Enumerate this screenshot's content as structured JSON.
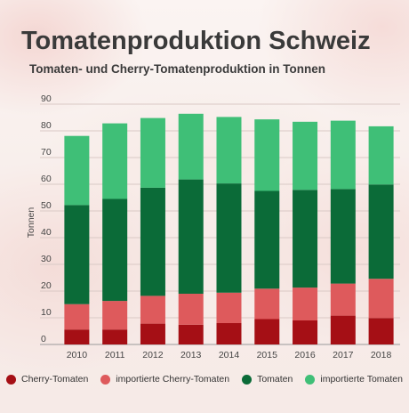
{
  "title": "Tomatenproduktion Schweiz",
  "subtitle": "Tomaten- und Cherry-Tomatenproduktion in Tonnen",
  "chart_data": {
    "type": "bar",
    "stacked": true,
    "categories": [
      "2010",
      "2011",
      "2012",
      "2013",
      "2014",
      "2015",
      "2016",
      "2017",
      "2018"
    ],
    "ylabel": "Tonnen",
    "ylim": [
      0,
      90
    ],
    "yticks": [
      0,
      10,
      20,
      30,
      40,
      50,
      60,
      70,
      80,
      90
    ],
    "grid": true,
    "legend_position": "bottom",
    "series": [
      {
        "name": "Cherry-Tomaten",
        "color": "#a50f15",
        "values": [
          5.6,
          5.6,
          7.8,
          7.4,
          8.0,
          9.5,
          9.0,
          10.8,
          9.9
        ]
      },
      {
        "name": "importierte Cherry-Tomaten",
        "color": "#de5a5c",
        "values": [
          9.5,
          10.7,
          10.4,
          11.6,
          11.4,
          11.4,
          12.3,
          12.0,
          14.7
        ]
      },
      {
        "name": "Tomaten",
        "color": "#0b6b38",
        "values": [
          37.1,
          38.2,
          40.5,
          42.8,
          40.9,
          36.6,
          36.6,
          35.4,
          35.3
        ]
      },
      {
        "name": "importierte Tomaten",
        "color": "#3fbf77",
        "values": [
          25.9,
          28.3,
          26.1,
          24.6,
          24.9,
          26.8,
          25.5,
          25.6,
          21.8
        ]
      }
    ]
  }
}
